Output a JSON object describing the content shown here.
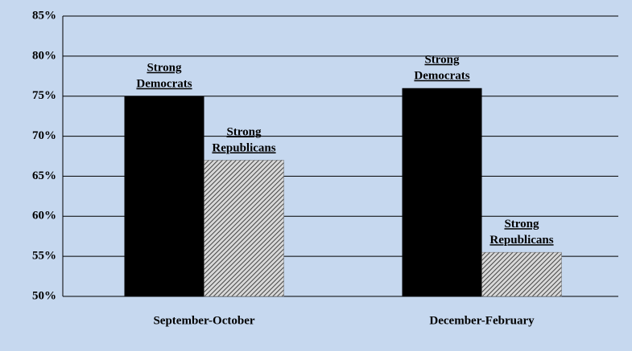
{
  "chart_data": {
    "type": "bar",
    "categories": [
      "September-October",
      "December-February"
    ],
    "series": [
      {
        "name": "Strong Democrats",
        "color": "#000000",
        "values": [
          75,
          76
        ]
      },
      {
        "name": "Strong Republicans",
        "color": "#6e6e6e",
        "pattern": "hatch",
        "values": [
          67,
          55.5
        ]
      }
    ],
    "ylim": [
      50,
      85
    ],
    "yticks": [
      {
        "value": 50,
        "label": "50%"
      },
      {
        "value": 55,
        "label": "55%"
      },
      {
        "value": 60,
        "label": "60%"
      },
      {
        "value": 65,
        "label": "65%"
      },
      {
        "value": 70,
        "label": "70%"
      },
      {
        "value": 75,
        "label": "75%"
      },
      {
        "value": 80,
        "label": "80%"
      },
      {
        "value": 85,
        "label": "85%"
      }
    ],
    "grid": true
  }
}
